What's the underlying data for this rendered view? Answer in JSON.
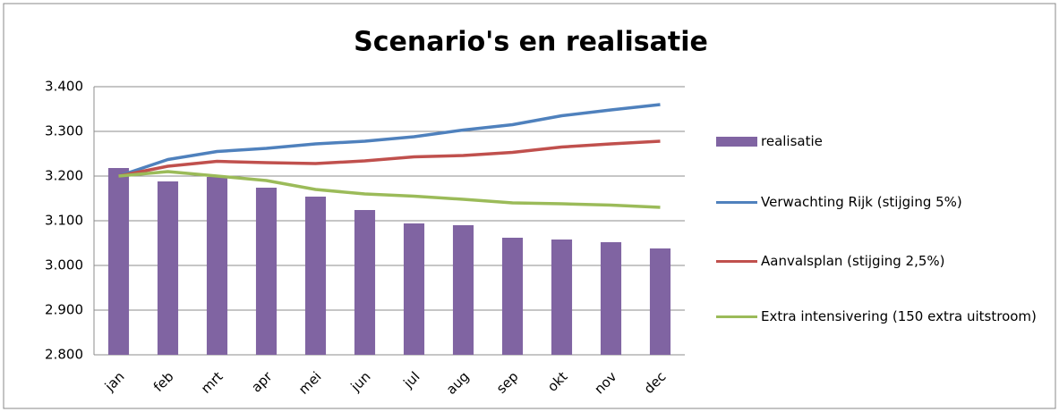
{
  "chart_data": {
    "type": "bar",
    "title": "Scenario's en realisatie",
    "categories": [
      "jan",
      "feb",
      "mrt",
      "apr",
      "mei",
      "jun",
      "jul",
      "aug",
      "sep",
      "okt",
      "nov",
      "dec"
    ],
    "series": [
      {
        "name": "realisatie",
        "type": "bar",
        "color": "#8064a2",
        "values": [
          3218,
          3188,
          3198,
          3174,
          3154,
          3124,
          3094,
          3090,
          3062,
          3058,
          3052,
          3038
        ]
      },
      {
        "name": "Verwachting Rijk (stijging 5%)",
        "type": "line",
        "color": "#4f81bd",
        "values": [
          3200,
          3237,
          3255,
          3262,
          3272,
          3278,
          3288,
          3303,
          3315,
          3335,
          3348,
          3360
        ]
      },
      {
        "name": "Aanvalsplan (stijging 2,5%)",
        "type": "line",
        "color": "#c0504d",
        "values": [
          3200,
          3222,
          3233,
          3230,
          3228,
          3234,
          3243,
          3246,
          3253,
          3265,
          3272,
          3278
        ]
      },
      {
        "name": "Extra intensivering (150 extra uitstroom)",
        "type": "line",
        "color": "#9bbb59",
        "values": [
          3200,
          3210,
          3200,
          3190,
          3170,
          3160,
          3155,
          3148,
          3140,
          3138,
          3135,
          3130
        ]
      }
    ],
    "ylim": [
      2800,
      3400
    ],
    "yticks": [
      {
        "value": 2800,
        "label": "2.800"
      },
      {
        "value": 2900,
        "label": "2.900"
      },
      {
        "value": 3000,
        "label": "3.000"
      },
      {
        "value": 3100,
        "label": "3.100"
      },
      {
        "value": 3200,
        "label": "3.200"
      },
      {
        "value": 3300,
        "label": "3.300"
      },
      {
        "value": 3400,
        "label": "3.400"
      }
    ],
    "grid": true,
    "legend": "right"
  }
}
